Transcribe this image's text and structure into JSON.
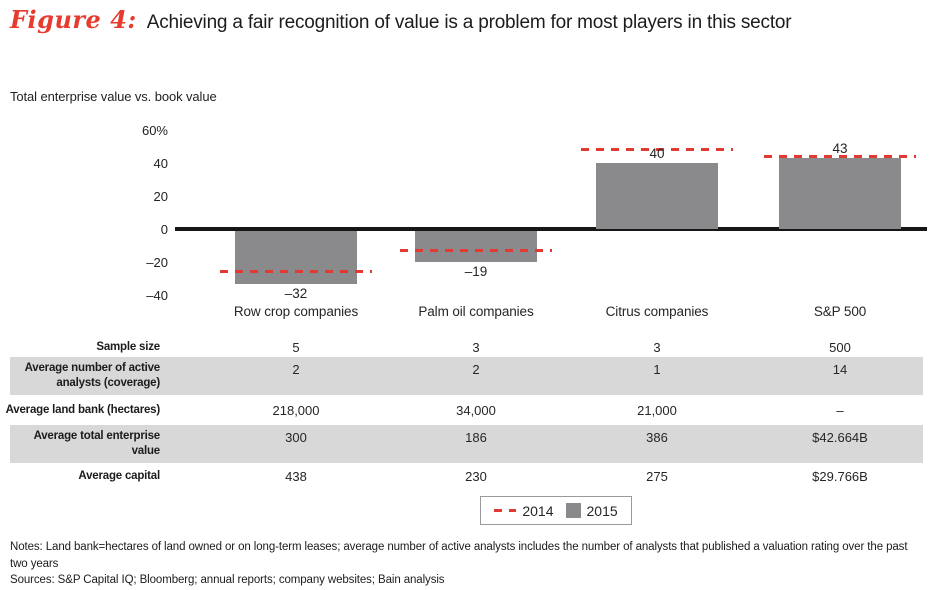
{
  "title": {
    "figure_label": "Figure 4:",
    "text": "Achieving a fair recognition of value is a problem for most players in this sector"
  },
  "chart_data": {
    "type": "bar",
    "title": "Total enterprise value vs. book value",
    "unit": "%",
    "categories": [
      "Row crop companies",
      "Palm oil companies",
      "Citrus companies",
      "S&P 500"
    ],
    "series": [
      {
        "name": "2014",
        "style": "dashed-line",
        "values": [
          -26,
          -13,
          48,
          44
        ]
      },
      {
        "name": "2015",
        "style": "bar",
        "values": [
          -32,
          -19,
          40,
          43
        ],
        "value_labels": [
          "–32",
          "–19",
          "40",
          "43"
        ]
      }
    ],
    "y_axis": {
      "tick_labels": [
        "60%",
        "40",
        "20",
        "0",
        "–20",
        "–40"
      ],
      "tick_values": [
        60,
        40,
        20,
        0,
        -20,
        -40
      ],
      "range": [
        -40,
        60
      ]
    },
    "legend_position": "bottom-center",
    "grid": false
  },
  "table": {
    "rows": [
      {
        "header_lines": [
          "Sample size"
        ],
        "values": [
          "5",
          "3",
          "3",
          "500"
        ],
        "shaded": false
      },
      {
        "header_lines": [
          "Average number of active",
          "analysts (coverage)"
        ],
        "values": [
          "2",
          "2",
          "1",
          "14"
        ],
        "shaded": true
      },
      {
        "header_lines": [
          "Average land bank (hectares)"
        ],
        "values": [
          "218,000",
          "34,000",
          "21,000",
          "–"
        ],
        "shaded": false
      },
      {
        "header_lines": [
          "Average total enterprise",
          "value"
        ],
        "values": [
          "300",
          "186",
          "386",
          "$42.664B"
        ],
        "shaded": true
      },
      {
        "header_lines": [
          "Average capital"
        ],
        "values": [
          "438",
          "230",
          "275",
          "$29.766B"
        ],
        "shaded": false
      }
    ]
  },
  "footnotes": {
    "notes": "Notes: Land bank=hectares of land owned or on long-term leases; average number of active analysts includes the number of analysts that published a valuation rating over the past two years",
    "sources": "Sources: S&P Capital IQ; Bloomberg; annual reports; company websites; Bain analysis"
  },
  "colors": {
    "accent_red": "#e03a33",
    "bar_gray": "#8a8a8d",
    "row_shade": "#d8d8d8",
    "axis_black": "#161616"
  }
}
